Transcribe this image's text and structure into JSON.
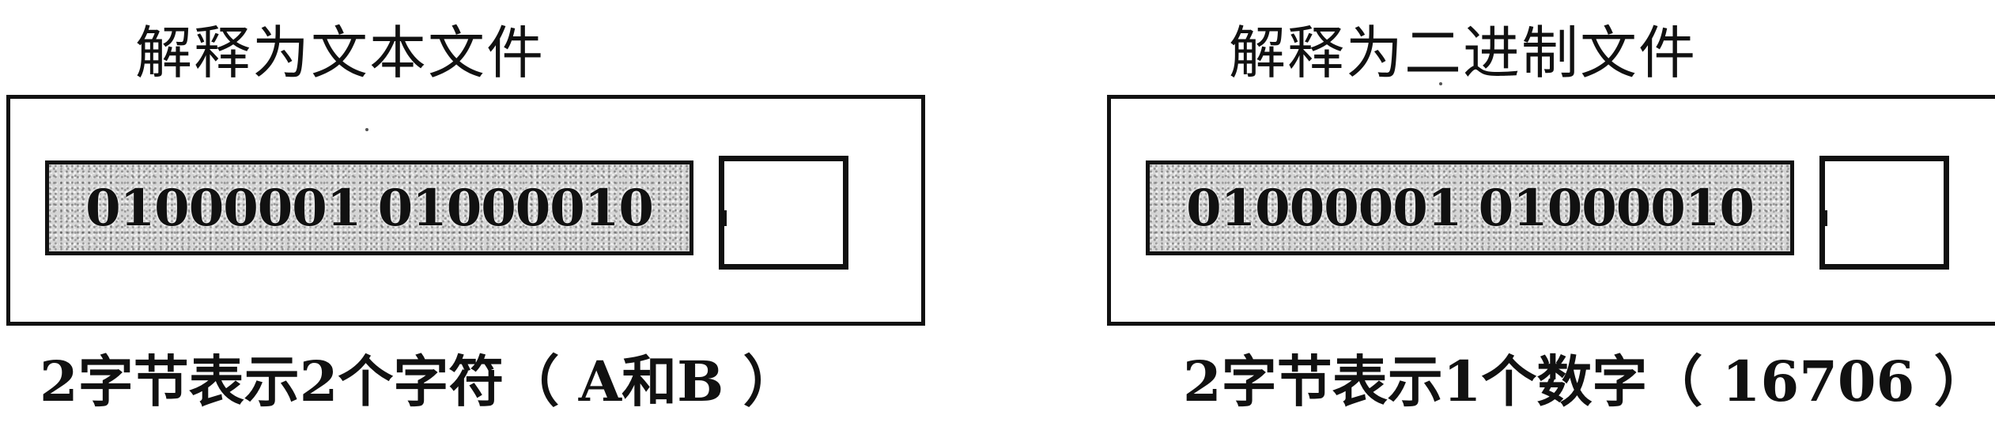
{
  "panels": [
    {
      "title": "解释为文本文件",
      "bits": "01000001 01000010",
      "caption": "2字节表示2个字符（ A和B ）"
    },
    {
      "title": "解释为二进制文件",
      "bits": "01000001 01000010",
      "caption": "2字节表示1个数字（ 16706 ）"
    }
  ]
}
